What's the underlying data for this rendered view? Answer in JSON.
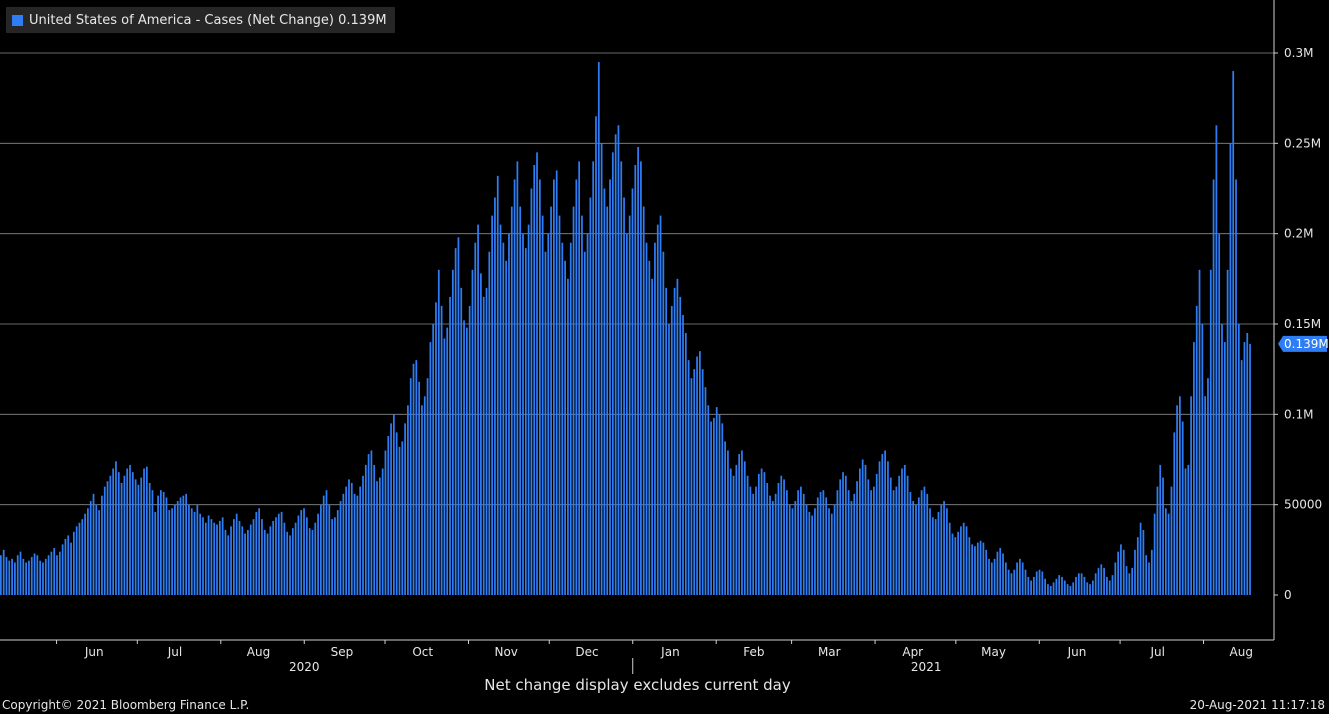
{
  "legend": {
    "label": "United States of America - Cases (Net Change) 0.139M",
    "color": "#2f7df5"
  },
  "footer": {
    "note": "Net change display excludes current day",
    "copyright": "Copyright© 2021 Bloomberg Finance L.P.",
    "timestamp": "20-Aug-2021 11:17:18"
  },
  "colors": {
    "background": "#000000",
    "bar": "#2f7df5",
    "grid": "#8a8a8a",
    "last_value_tag": "#2f7df5"
  },
  "chart_data": {
    "type": "bar",
    "start_date": "2020-05-11",
    "end_date": "2021-08-19",
    "y_axis_side": "right",
    "ylim": [
      -25000,
      300000
    ],
    "y_ticks": [
      {
        "value": 0,
        "label": "0"
      },
      {
        "value": 50000,
        "label": "50000"
      },
      {
        "value": 100000,
        "label": "0.1M"
      },
      {
        "value": 150000,
        "label": "0.15M"
      },
      {
        "value": 200000,
        "label": "0.2M"
      },
      {
        "value": 250000,
        "label": "0.25M"
      },
      {
        "value": 300000,
        "label": "0.3M"
      }
    ],
    "last_value": {
      "value": 139000,
      "label": "0.139M"
    },
    "month_labels": [
      {
        "date": "2020-06-15",
        "label": "Jun"
      },
      {
        "date": "2020-07-15",
        "label": "Jul"
      },
      {
        "date": "2020-08-15",
        "label": "Aug"
      },
      {
        "date": "2020-09-15",
        "label": "Sep"
      },
      {
        "date": "2020-10-15",
        "label": "Oct"
      },
      {
        "date": "2020-11-15",
        "label": "Nov"
      },
      {
        "date": "2020-12-15",
        "label": "Dec"
      },
      {
        "date": "2021-01-15",
        "label": "Jan"
      },
      {
        "date": "2021-02-15",
        "label": "Feb"
      },
      {
        "date": "2021-03-15",
        "label": "Mar"
      },
      {
        "date": "2021-04-15",
        "label": "Apr"
      },
      {
        "date": "2021-05-15",
        "label": "May"
      },
      {
        "date": "2021-06-15",
        "label": "Jun"
      },
      {
        "date": "2021-07-15",
        "label": "Jul"
      },
      {
        "date": "2021-08-15",
        "label": "Aug"
      }
    ],
    "year_labels": [
      {
        "date": "2020-09-01",
        "label": "2020"
      },
      {
        "date": "2021-04-20",
        "label": "2021"
      }
    ],
    "year_divider": "2021-01-01",
    "series": [
      {
        "values": [
          22000,
          25000,
          21000,
          19000,
          20000,
          18000,
          22000,
          24000,
          20000,
          18000,
          19000,
          21000,
          23000,
          22000,
          19000,
          18000,
          20000,
          22000,
          24000,
          26000,
          22000,
          24000,
          28000,
          31000,
          33000,
          29000,
          35000,
          38000,
          40000,
          42000,
          45000,
          48000,
          52000,
          56000,
          50000,
          47000,
          55000,
          60000,
          63000,
          66000,
          70000,
          74000,
          68000,
          62000,
          66000,
          70000,
          72000,
          68000,
          64000,
          61000,
          65000,
          70000,
          71000,
          62000,
          58000,
          46000,
          55000,
          58000,
          57000,
          54000,
          47000,
          48000,
          50000,
          52000,
          54000,
          55000,
          56000,
          50000,
          48000,
          46000,
          50000,
          45000,
          43000,
          40000,
          44000,
          42000,
          40000,
          39000,
          41000,
          43000,
          36000,
          33000,
          38000,
          42000,
          45000,
          41000,
          38000,
          34000,
          36000,
          39000,
          42000,
          46000,
          48000,
          42000,
          36000,
          34000,
          38000,
          41000,
          43000,
          45000,
          46000,
          40000,
          35000,
          33000,
          37000,
          40000,
          44000,
          47000,
          48000,
          43000,
          37000,
          36000,
          40000,
          45000,
          50000,
          55000,
          58000,
          50000,
          42000,
          43000,
          47000,
          52000,
          56000,
          60000,
          64000,
          62000,
          56000,
          55000,
          60000,
          66000,
          72000,
          78000,
          80000,
          72000,
          63000,
          65000,
          70000,
          80000,
          88000,
          95000,
          100000,
          90000,
          82000,
          85000,
          95000,
          105000,
          120000,
          128000,
          130000,
          118000,
          105000,
          110000,
          120000,
          140000,
          150000,
          162000,
          180000,
          160000,
          142000,
          148000,
          165000,
          180000,
          192000,
          198000,
          170000,
          152000,
          148000,
          160000,
          180000,
          195000,
          205000,
          178000,
          165000,
          170000,
          190000,
          210000,
          220000,
          232000,
          205000,
          195000,
          185000,
          200000,
          215000,
          230000,
          240000,
          215000,
          200000,
          192000,
          205000,
          225000,
          238000,
          245000,
          230000,
          210000,
          190000,
          200000,
          215000,
          230000,
          235000,
          210000,
          195000,
          185000,
          175000,
          195000,
          215000,
          230000,
          240000,
          210000,
          190000,
          200000,
          220000,
          240000,
          265000,
          295000,
          250000,
          225000,
          215000,
          230000,
          245000,
          255000,
          260000,
          240000,
          220000,
          200000,
          210000,
          225000,
          238000,
          248000,
          240000,
          215000,
          195000,
          185000,
          175000,
          195000,
          205000,
          210000,
          190000,
          170000,
          150000,
          160000,
          170000,
          175000,
          165000,
          155000,
          145000,
          130000,
          120000,
          125000,
          132000,
          135000,
          125000,
          115000,
          105000,
          96000,
          98000,
          104000,
          100000,
          95000,
          85000,
          80000,
          70000,
          66000,
          72000,
          78000,
          80000,
          74000,
          66000,
          60000,
          56000,
          60000,
          67000,
          70000,
          68000,
          62000,
          55000,
          52000,
          56000,
          62000,
          66000,
          64000,
          58000,
          50000,
          48000,
          52000,
          58000,
          60000,
          56000,
          50000,
          46000,
          44000,
          48000,
          54000,
          57000,
          58000,
          54000,
          48000,
          45000,
          50000,
          58000,
          64000,
          68000,
          66000,
          58000,
          52000,
          56000,
          63000,
          70000,
          75000,
          72000,
          64000,
          58000,
          60000,
          67000,
          74000,
          78000,
          80000,
          74000,
          65000,
          58000,
          60000,
          66000,
          70000,
          72000,
          66000,
          57000,
          52000,
          50000,
          54000,
          58000,
          60000,
          56000,
          48000,
          43000,
          42000,
          46000,
          50000,
          52000,
          48000,
          40000,
          34000,
          32000,
          35000,
          38000,
          40000,
          38000,
          32000,
          28000,
          27000,
          29000,
          30000,
          29000,
          25000,
          20000,
          18000,
          20000,
          24000,
          26000,
          23000,
          18000,
          14000,
          12000,
          14000,
          18000,
          20000,
          18000,
          14000,
          10000,
          8000,
          10000,
          13000,
          14000,
          13000,
          9000,
          6000,
          5000,
          7000,
          9000,
          11000,
          10000,
          8000,
          6000,
          5000,
          7000,
          10000,
          12000,
          12000,
          10000,
          7000,
          6000,
          8000,
          12000,
          15000,
          17000,
          15000,
          10000,
          8000,
          11000,
          18000,
          24000,
          28000,
          25000,
          16000,
          12000,
          15000,
          25000,
          32000,
          40000,
          36000,
          22000,
          18000,
          25000,
          45000,
          60000,
          72000,
          65000,
          48000,
          45000,
          60000,
          90000,
          105000,
          110000,
          96000,
          70000,
          72000,
          110000,
          140000,
          160000,
          180000,
          150000,
          110000,
          120000,
          180000,
          230000,
          260000,
          200000,
          150000,
          140000,
          180000,
          250000,
          290000,
          230000,
          150000,
          130000,
          140000,
          145000,
          139000
        ]
      }
    ]
  }
}
